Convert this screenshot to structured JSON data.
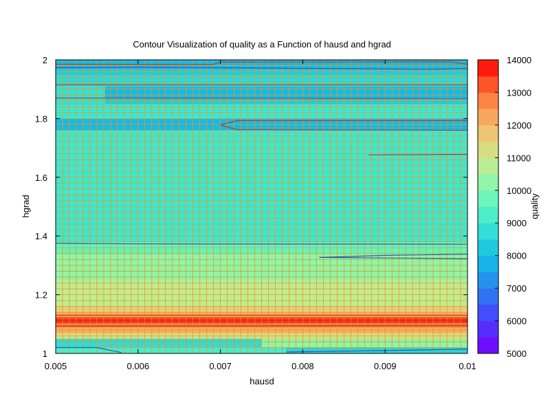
{
  "chart_data": {
    "type": "heatmap",
    "title": "Contour Visualization of quality as a Function of hausd and hgrad",
    "xlabel": "hausd",
    "ylabel": "hgrad",
    "colorbar_label": "quality",
    "xlim": [
      0.005,
      0.01
    ],
    "ylim": [
      1,
      2
    ],
    "x_ticks": [
      "0.005",
      "0.006",
      "0.007",
      "0.008",
      "0.009",
      "0.01"
    ],
    "y_ticks": [
      "1",
      "1.2",
      "1.4",
      "1.6",
      "1.8",
      "2"
    ],
    "colorbar_ticks": [
      "5000",
      "6000",
      "7000",
      "8000",
      "9000",
      "10000",
      "11000",
      "12000",
      "13000",
      "14000"
    ],
    "levels": [
      5000,
      6000,
      7000,
      8000,
      9000,
      10000,
      11000,
      12000,
      13000,
      14000
    ],
    "grid": true,
    "colors": {
      "grid": "#e69a1e",
      "contour_blue": "#1f5fb8",
      "contour_red": "#c0392b"
    },
    "bands": [
      {
        "y": [
          1.0,
          1.02
        ],
        "value": 9200
      },
      {
        "y": [
          1.02,
          1.05
        ],
        "value": 10200
      },
      {
        "y": [
          1.05,
          1.07
        ],
        "value": 11200
      },
      {
        "y": [
          1.07,
          1.09
        ],
        "value": 12200
      },
      {
        "y": [
          1.09,
          1.105
        ],
        "value": 13000
      },
      {
        "y": [
          1.105,
          1.125
        ],
        "value": 13600
      },
      {
        "y": [
          1.125,
          1.14
        ],
        "value": 12200
      },
      {
        "y": [
          1.14,
          1.16
        ],
        "value": 11600
      },
      {
        "y": [
          1.16,
          1.25
        ],
        "value": 10800
      },
      {
        "y": [
          1.25,
          1.34
        ],
        "value": 10200
      },
      {
        "y": [
          1.34,
          1.38
        ],
        "value": 9600
      },
      {
        "y": [
          1.38,
          1.65
        ],
        "value": 9000
      },
      {
        "y": [
          1.65,
          1.7
        ],
        "value": 9000
      },
      {
        "y": [
          1.7,
          1.76
        ],
        "value": 9000
      },
      {
        "y": [
          1.76,
          1.8
        ],
        "value": 7900
      },
      {
        "y": [
          1.8,
          1.85
        ],
        "value": 9000
      },
      {
        "y": [
          1.85,
          1.87
        ],
        "value": 8300
      },
      {
        "y": [
          1.87,
          1.91
        ],
        "value": 7900
      },
      {
        "y": [
          1.91,
          1.95
        ],
        "value": 8600
      },
      {
        "y": [
          1.95,
          1.97
        ],
        "value": 8300
      },
      {
        "y": [
          1.97,
          2.0
        ],
        "value": 7900
      }
    ],
    "patches": [
      {
        "x": [
          0.005,
          0.0056
        ],
        "y": [
          1.85,
          1.91
        ],
        "value": 8800
      },
      {
        "x": [
          0.0071,
          0.01
        ],
        "y": [
          1.76,
          1.8
        ],
        "value": 7900
      },
      {
        "x": [
          0.005,
          0.0075
        ],
        "y": [
          1.02,
          1.05
        ],
        "value": 8700
      },
      {
        "x": [
          0.0078,
          0.01
        ],
        "y": [
          1.0,
          1.02
        ],
        "value": 8500
      }
    ],
    "contours": [
      {
        "color": "red",
        "points": [
          [
            0.005,
            1.985
          ],
          [
            0.0069,
            1.984
          ],
          [
            0.007,
            1.992
          ],
          [
            0.0098,
            1.993
          ],
          [
            0.01,
            1.985
          ]
        ]
      },
      {
        "color": "blue",
        "points": [
          [
            0.005,
            1.973
          ],
          [
            0.006,
            1.975
          ],
          [
            0.0095,
            1.968
          ],
          [
            0.01,
            1.97
          ]
        ]
      },
      {
        "color": "red",
        "points": [
          [
            0.005,
            1.915
          ],
          [
            0.01,
            1.915
          ]
        ]
      },
      {
        "color": "red",
        "points": [
          [
            0.005,
            1.87
          ],
          [
            0.01,
            1.868
          ]
        ]
      },
      {
        "color": "red",
        "points": [
          [
            0.007,
            1.778
          ],
          [
            0.0072,
            1.793
          ],
          [
            0.01,
            1.793
          ]
        ]
      },
      {
        "color": "red",
        "points": [
          [
            0.007,
            1.778
          ],
          [
            0.0072,
            1.762
          ],
          [
            0.01,
            1.76
          ]
        ]
      },
      {
        "color": "red",
        "points": [
          [
            0.0088,
            1.676
          ],
          [
            0.01,
            1.678
          ]
        ]
      },
      {
        "color": "blue",
        "points": [
          [
            0.005,
            1.375
          ],
          [
            0.006,
            1.373
          ],
          [
            0.01,
            1.372
          ]
        ]
      },
      {
        "color": "blue",
        "points": [
          [
            0.0082,
            1.327
          ],
          [
            0.009,
            1.334
          ],
          [
            0.01,
            1.338
          ]
        ]
      },
      {
        "color": "blue",
        "points": [
          [
            0.0082,
            1.327
          ],
          [
            0.009,
            1.325
          ],
          [
            0.01,
            1.323
          ]
        ]
      },
      {
        "color": "red",
        "points": [
          [
            0.005,
            1.112
          ],
          [
            0.01,
            1.113
          ]
        ]
      },
      {
        "color": "red",
        "points": [
          [
            0.005,
            1.13
          ],
          [
            0.01,
            1.13
          ]
        ]
      },
      {
        "color": "red",
        "points": [
          [
            0.005,
            1.093
          ],
          [
            0.01,
            1.095
          ]
        ]
      },
      {
        "color": "blue",
        "points": [
          [
            0.005,
            1.02
          ],
          [
            0.0055,
            1.02
          ],
          [
            0.0058,
            1.003
          ]
        ]
      },
      {
        "color": "blue",
        "points": [
          [
            0.0078,
            1.005
          ],
          [
            0.0095,
            1.012
          ],
          [
            0.01,
            1.015
          ]
        ]
      }
    ]
  }
}
